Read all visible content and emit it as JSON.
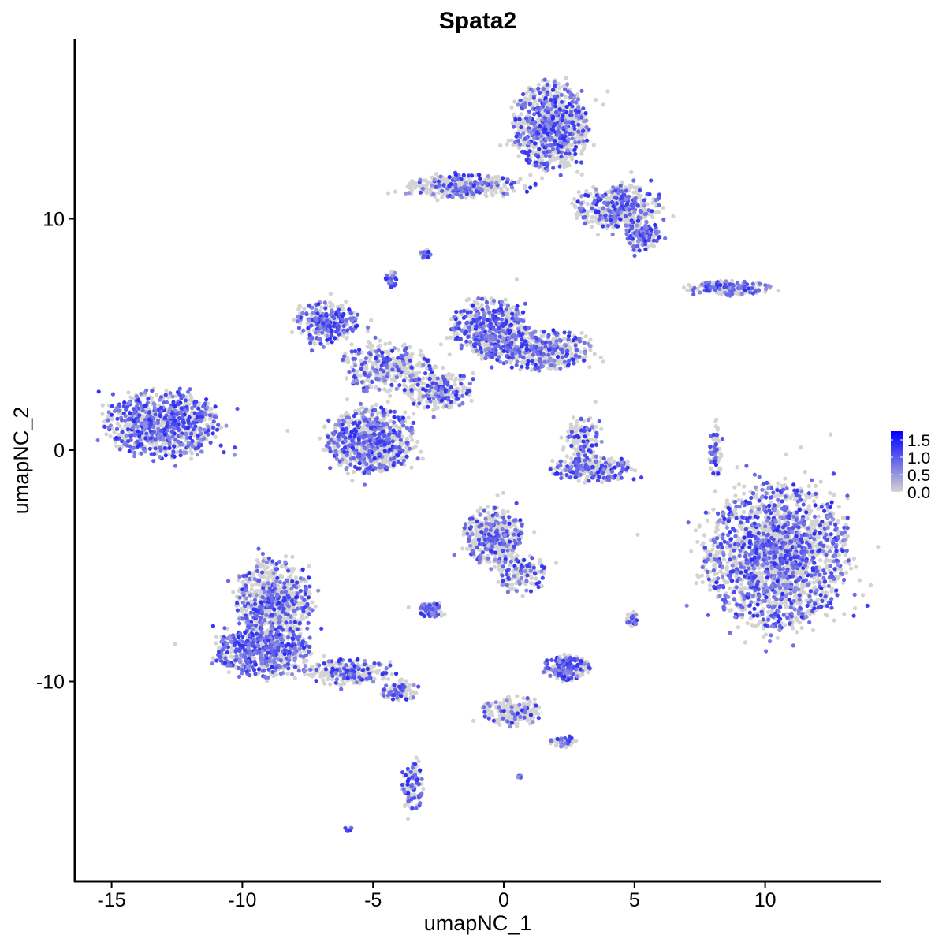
{
  "chart_data": {
    "type": "scatter",
    "title": "Spata2",
    "xlabel": "umapNC_1",
    "ylabel": "umapNC_2",
    "xlim": [
      -16.4,
      14.4
    ],
    "ylim": [
      -18.6,
      17.75
    ],
    "xticks": [
      -15,
      -10,
      -5,
      0,
      5,
      10
    ],
    "yticks": [
      -10,
      0,
      10
    ],
    "grid": false,
    "legend": {
      "placement": "right",
      "type": "colorbar",
      "ticks": [
        "1.5",
        "1.0",
        "0.5",
        "0.0"
      ],
      "range": [
        0,
        1.75
      ],
      "low_color": "#d3d3d3",
      "high_color": "#0000ff"
    },
    "clusters": [
      {
        "x": 1.8,
        "y": 14.0,
        "rx": 1.3,
        "ry": 1.7,
        "n": 900,
        "expr_frac": 0.35
      },
      {
        "x": -1.5,
        "y": 11.4,
        "rx": 2.0,
        "ry": 0.45,
        "n": 350,
        "expr_frac": 0.25
      },
      {
        "x": 4.3,
        "y": 10.5,
        "rx": 1.5,
        "ry": 0.9,
        "n": 450,
        "expr_frac": 0.35
      },
      {
        "x": 5.3,
        "y": 9.3,
        "rx": 0.6,
        "ry": 0.6,
        "n": 150,
        "expr_frac": 0.5
      },
      {
        "x": -13.1,
        "y": 1.1,
        "rx": 2.0,
        "ry": 1.3,
        "n": 800,
        "expr_frac": 0.55
      },
      {
        "x": -5.1,
        "y": 0.4,
        "rx": 1.5,
        "ry": 1.3,
        "n": 800,
        "expr_frac": 0.4
      },
      {
        "x": -6.8,
        "y": 5.5,
        "rx": 1.1,
        "ry": 0.8,
        "n": 300,
        "expr_frac": 0.5
      },
      {
        "x": -4.4,
        "y": 3.6,
        "rx": 1.6,
        "ry": 1.0,
        "n": 350,
        "expr_frac": 0.3
      },
      {
        "x": -0.6,
        "y": 5.3,
        "rx": 1.3,
        "ry": 1.1,
        "n": 500,
        "expr_frac": 0.45
      },
      {
        "x": 1.4,
        "y": 4.3,
        "rx": 1.8,
        "ry": 0.8,
        "n": 450,
        "expr_frac": 0.4
      },
      {
        "x": -2.5,
        "y": 2.6,
        "rx": 1.2,
        "ry": 0.8,
        "n": 250,
        "expr_frac": 0.3
      },
      {
        "x": 10.4,
        "y": -4.6,
        "rx": 2.5,
        "ry": 2.8,
        "n": 2200,
        "expr_frac": 0.4
      },
      {
        "x": -8.8,
        "y": -6.5,
        "rx": 1.3,
        "ry": 1.6,
        "n": 700,
        "expr_frac": 0.35
      },
      {
        "x": -9.2,
        "y": -8.7,
        "rx": 1.6,
        "ry": 1.0,
        "n": 600,
        "expr_frac": 0.5
      },
      {
        "x": -6.0,
        "y": -9.6,
        "rx": 1.5,
        "ry": 0.5,
        "n": 250,
        "expr_frac": 0.3
      },
      {
        "x": -4.0,
        "y": -10.4,
        "rx": 0.7,
        "ry": 0.4,
        "n": 100,
        "expr_frac": 0.4
      },
      {
        "x": -3.5,
        "y": -14.6,
        "rx": 0.35,
        "ry": 1.0,
        "n": 120,
        "expr_frac": 0.4
      },
      {
        "x": -0.4,
        "y": -3.7,
        "rx": 1.0,
        "ry": 1.1,
        "n": 450,
        "expr_frac": 0.3
      },
      {
        "x": 0.7,
        "y": -5.3,
        "rx": 0.9,
        "ry": 0.8,
        "n": 150,
        "expr_frac": 0.3
      },
      {
        "x": 3.3,
        "y": -0.8,
        "rx": 1.4,
        "ry": 0.5,
        "n": 250,
        "expr_frac": 0.4
      },
      {
        "x": 3.0,
        "y": 0.4,
        "rx": 0.6,
        "ry": 0.9,
        "n": 120,
        "expr_frac": 0.3
      },
      {
        "x": 2.4,
        "y": -9.4,
        "rx": 0.8,
        "ry": 0.5,
        "n": 200,
        "expr_frac": 0.45
      },
      {
        "x": 8.7,
        "y": 7.0,
        "rx": 1.4,
        "ry": 0.3,
        "n": 200,
        "expr_frac": 0.4
      },
      {
        "x": -2.8,
        "y": -6.9,
        "rx": 0.4,
        "ry": 0.3,
        "n": 80,
        "expr_frac": 0.4
      },
      {
        "x": 0.3,
        "y": -11.3,
        "rx": 1.0,
        "ry": 0.6,
        "n": 200,
        "expr_frac": 0.15
      },
      {
        "x": 2.3,
        "y": -12.6,
        "rx": 0.5,
        "ry": 0.2,
        "n": 60,
        "expr_frac": 0.15
      },
      {
        "x": 4.9,
        "y": -7.3,
        "rx": 0.2,
        "ry": 0.3,
        "n": 40,
        "expr_frac": 0.4
      },
      {
        "x": 8.1,
        "y": 0.0,
        "rx": 0.25,
        "ry": 1.1,
        "n": 80,
        "expr_frac": 0.4
      },
      {
        "x": -3.0,
        "y": 8.5,
        "rx": 0.2,
        "ry": 0.2,
        "n": 25,
        "expr_frac": 0.6
      },
      {
        "x": -4.3,
        "y": 7.4,
        "rx": 0.2,
        "ry": 0.3,
        "n": 30,
        "expr_frac": 0.6
      },
      {
        "x": 0.6,
        "y": -14.1,
        "rx": 0.1,
        "ry": 0.1,
        "n": 8,
        "expr_frac": 0.6
      },
      {
        "x": -5.9,
        "y": -16.4,
        "rx": 0.15,
        "ry": 0.1,
        "n": 8,
        "expr_frac": 0.6
      }
    ]
  }
}
